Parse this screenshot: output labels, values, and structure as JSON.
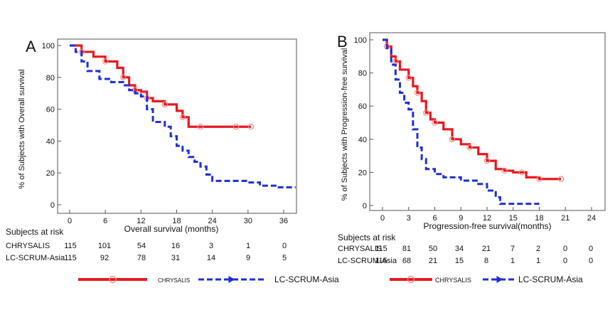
{
  "chart_data": [
    {
      "type": "line",
      "panel_letter": "A",
      "xlabel": "Overall survival (months)",
      "ylabel": "% of Subjects with Overall survival",
      "xlim": [
        0,
        38
      ],
      "ylim": [
        0,
        100
      ],
      "xticks": [
        0,
        6,
        12,
        18,
        24,
        30,
        36
      ],
      "yticks": [
        0,
        20,
        40,
        60,
        80,
        100
      ],
      "series": [
        {
          "name": "CHRYSALIS",
          "color": "#e8191f",
          "style": "solid",
          "x": [
            0,
            2,
            4,
            6,
            8,
            9,
            10,
            11,
            12,
            13,
            14,
            16,
            18,
            19,
            20,
            22,
            25,
            28,
            30.5
          ],
          "y": [
            100,
            96,
            93,
            90,
            86,
            80,
            75,
            72,
            71,
            67,
            65,
            63,
            59,
            55,
            49,
            49,
            49,
            49,
            49
          ]
        },
        {
          "name": "LC-SCRUM-Asia",
          "color": "#1f2fd4",
          "style": "dashed",
          "x": [
            0,
            1,
            2,
            3,
            5,
            7,
            9,
            10,
            11,
            12,
            13,
            14,
            16,
            17,
            18,
            19,
            20,
            21,
            22,
            23,
            24,
            25,
            27,
            30,
            32,
            35,
            38
          ],
          "y": [
            100,
            96,
            90,
            84,
            79,
            77,
            75,
            72,
            70,
            68,
            60,
            52,
            49,
            43,
            37,
            34,
            30,
            27,
            24,
            19,
            15,
            15,
            15,
            14,
            12,
            11,
            11
          ]
        }
      ],
      "risk_table": {
        "title": "Subjects at risk",
        "rows": [
          {
            "label": "CHRYSALIS",
            "values": [
              "115",
              "101",
              "54",
              "16",
              "3",
              "1",
              "0"
            ]
          },
          {
            "label": "LC-SCRUM-Asia",
            "values": [
              "115",
              "92",
              "78",
              "31",
              "14",
              "9",
              "5"
            ]
          }
        ]
      },
      "legend": {
        "position": "bottom",
        "entries": [
          "CHRYSALIS",
          "LC-SCRUM-Asia"
        ]
      }
    },
    {
      "type": "line",
      "panel_letter": "B",
      "xlabel": "Progression-free survival(months)",
      "ylabel": "% of Subjects with Progression-free survival",
      "xlim": [
        0,
        25
      ],
      "ylim": [
        0,
        100
      ],
      "xticks": [
        0,
        3,
        6,
        9,
        12,
        15,
        18,
        21,
        24
      ],
      "yticks": [
        0,
        20,
        40,
        60,
        80,
        100
      ],
      "series": [
        {
          "name": "CHRYSALIS",
          "color": "#e8191f",
          "style": "solid",
          "x": [
            0,
            0.5,
            1,
            1.5,
            2,
            3,
            3.5,
            4,
            4.5,
            5,
            5.5,
            6,
            7,
            8,
            9,
            10,
            11,
            12,
            13,
            14,
            15,
            16,
            16.5,
            18,
            20.5
          ],
          "y": [
            100,
            96,
            90,
            87,
            82,
            77,
            72,
            68,
            63,
            56,
            52,
            50,
            46,
            40,
            37,
            35,
            31,
            27,
            22,
            21,
            20,
            20,
            17,
            16,
            16
          ]
        },
        {
          "name": "LC-SCRUM-Asia",
          "color": "#1f2fd4",
          "style": "dashed",
          "x": [
            0,
            0.5,
            1,
            1.5,
            2,
            2.5,
            3,
            3.5,
            4,
            4.5,
            5,
            6,
            7,
            9,
            11,
            12,
            13,
            13.5,
            16,
            18
          ],
          "y": [
            100,
            95,
            85,
            76,
            68,
            62,
            58,
            46,
            35,
            28,
            22,
            19,
            17,
            15,
            13,
            9,
            5,
            1,
            1,
            1
          ]
        }
      ],
      "risk_table": {
        "title": "Subjects at risk",
        "rows": [
          {
            "label": "CHRYSALIS",
            "values": [
              "115",
              "81",
              "50",
              "34",
              "21",
              "7",
              "2",
              "0",
              "0"
            ]
          },
          {
            "label": "LC-SCRUM-Asia",
            "values": [
              "115",
              "68",
              "21",
              "15",
              "8",
              "1",
              "1",
              "0",
              "0"
            ]
          }
        ]
      },
      "legend": {
        "position": "bottom",
        "entries": [
          "CHRYSALIS",
          "LC-SCRUM-Asia"
        ]
      }
    }
  ]
}
